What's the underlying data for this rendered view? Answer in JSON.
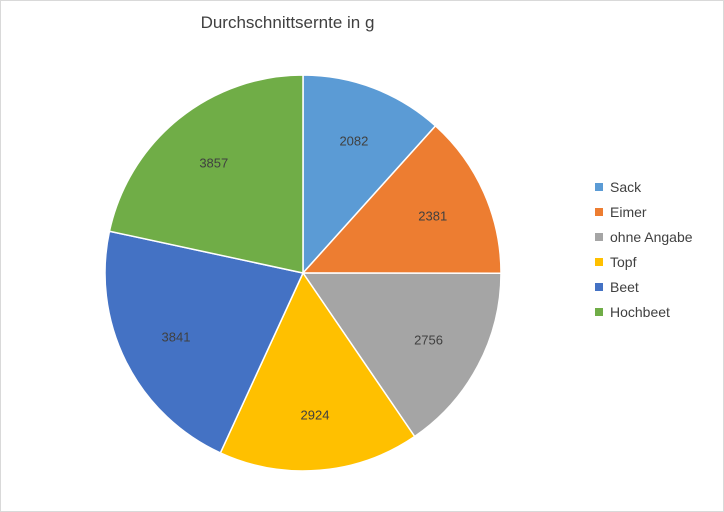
{
  "chart_data": {
    "type": "pie",
    "title": "Durchschnittsernte in g",
    "categories": [
      "Sack",
      "Eimer",
      "ohne Angabe",
      "Topf",
      "Beet",
      "Hochbeet"
    ],
    "values": [
      2082,
      2381,
      2756,
      2924,
      3841,
      3857
    ],
    "colors": [
      "#5B9BD5",
      "#ED7D31",
      "#A5A5A5",
      "#FFC000",
      "#4472C4",
      "#70AD47"
    ],
    "legend_position": "right",
    "start_angle": "12 o'clock",
    "direction": "clockwise"
  }
}
